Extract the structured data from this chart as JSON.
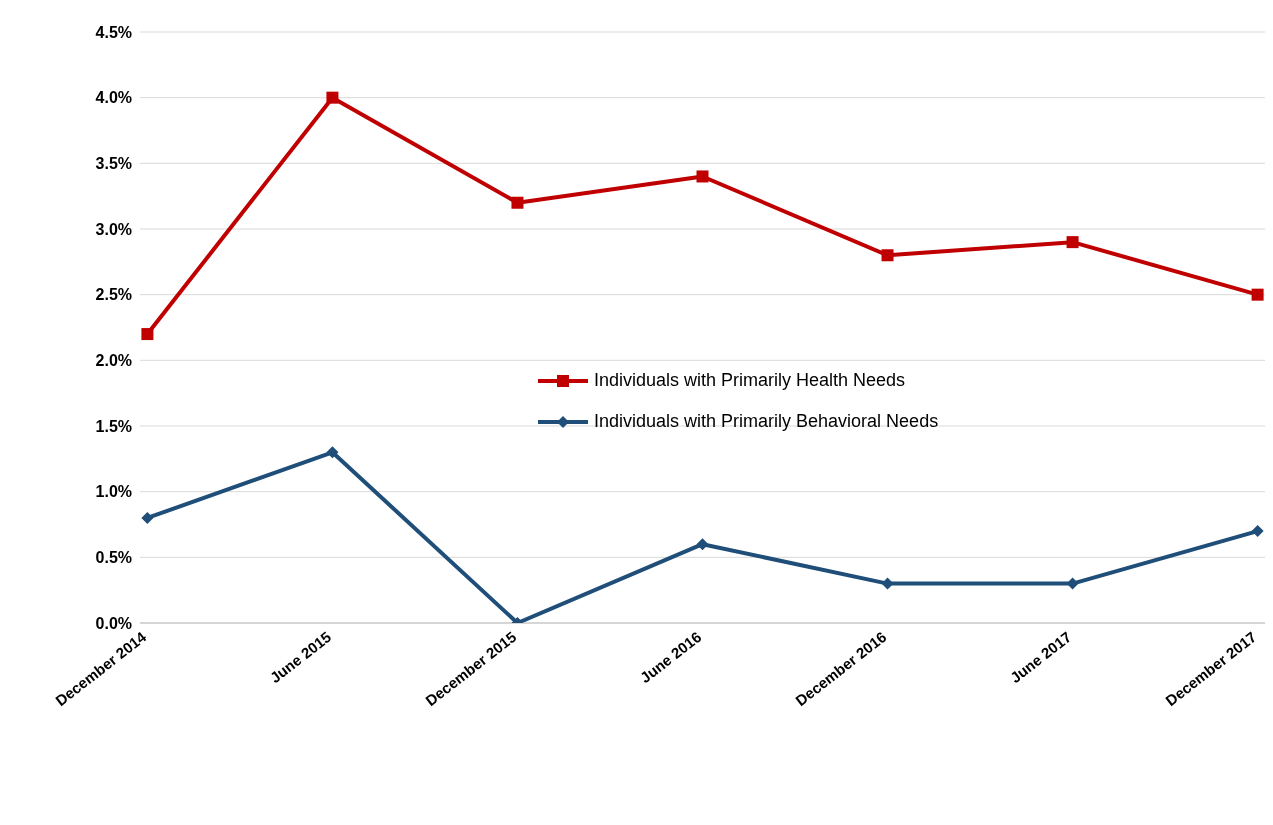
{
  "chart_data": {
    "type": "line",
    "categories": [
      "December 2014",
      "June 2015",
      "December 2015",
      "June 2016",
      "December 2016",
      "June 2017",
      "December 2017"
    ],
    "series": [
      {
        "name": "Individuals with Primarily Health Needs",
        "color": "#c00000",
        "marker": "square",
        "values": [
          2.2,
          4.0,
          3.2,
          3.4,
          2.8,
          2.9,
          2.5
        ]
      },
      {
        "name": "Individuals with Primarily Behavioral Needs",
        "color": "#1f4e79",
        "marker": "diamond",
        "values": [
          0.8,
          1.3,
          0.0,
          0.6,
          0.3,
          0.3,
          0.7
        ]
      }
    ],
    "ylim": [
      0,
      4.5
    ],
    "yticks": [
      {
        "value": 0,
        "label": "0.0%"
      },
      {
        "value": 0.5,
        "label": "0.5%"
      },
      {
        "value": 1,
        "label": "1.0%"
      },
      {
        "value": 1.5,
        "label": "1.5%"
      },
      {
        "value": 2,
        "label": "2.0%"
      },
      {
        "value": 2.5,
        "label": "2.5%"
      },
      {
        "value": 3,
        "label": "3.0%"
      },
      {
        "value": 3.5,
        "label": "3.5%"
      },
      {
        "value": 4,
        "label": "4.0%"
      },
      {
        "value": 4.5,
        "label": "4.5%"
      }
    ],
    "grid": "y",
    "legend": "center",
    "line_style": "solid"
  }
}
